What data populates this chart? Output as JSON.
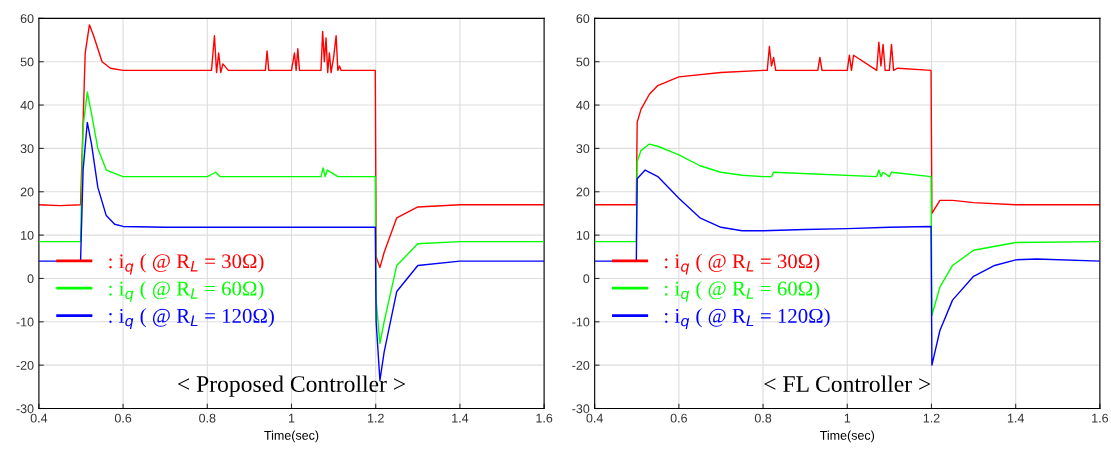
{
  "chart_data": [
    {
      "type": "line",
      "xlabel": "Time(sec)",
      "annotations": [
        "< Proposed Controller >"
      ],
      "xlim": [
        0.4,
        1.6
      ],
      "xticks": [
        0.4,
        0.6,
        0.8,
        1,
        1.2,
        1.4,
        1.6
      ],
      "ylim": [
        -30,
        60
      ],
      "yticks": [
        -30,
        -20,
        -10,
        0,
        10,
        20,
        30,
        40,
        50,
        60
      ],
      "grid": true,
      "legend": "center left",
      "series": [
        {
          "name": ": i$_{q}$ ( @ R$_{L}$ = 30Ω)",
          "color": "#ff0000",
          "x": [
            0.4,
            0.45,
            0.499,
            0.51,
            0.52,
            0.53,
            0.55,
            0.57,
            0.6,
            0.7,
            0.81,
            0.817,
            0.822,
            0.827,
            0.832,
            0.837,
            0.85,
            0.938,
            0.942,
            0.946,
            1.0,
            1.007,
            1.011,
            1.015,
            1.019,
            1.07,
            1.074,
            1.078,
            1.082,
            1.086,
            1.09,
            1.094,
            1.1,
            1.106,
            1.11,
            1.114,
            1.118,
            1.13,
            1.199,
            1.201,
            1.21,
            1.22,
            1.25,
            1.3,
            1.4,
            1.6
          ],
          "values": [
            17,
            16.8,
            17,
            52,
            58.5,
            56,
            50,
            48.5,
            48,
            48,
            48,
            56,
            47.5,
            52,
            47.5,
            49.5,
            48,
            48,
            52.5,
            48,
            48,
            52,
            48,
            53,
            48,
            48,
            57,
            50,
            55.5,
            47.5,
            52,
            47.5,
            51,
            56,
            48,
            49,
            48,
            48,
            48,
            5,
            2.5,
            6,
            14,
            16.5,
            17,
            17
          ]
        },
        {
          "name": ": i$_{q}$ ( @ R$_{L}$ = 60Ω)",
          "color": "#00ff00",
          "x": [
            0.4,
            0.499,
            0.505,
            0.515,
            0.525,
            0.54,
            0.56,
            0.6,
            0.7,
            0.8,
            0.82,
            0.83,
            1.07,
            1.075,
            1.08,
            1.085,
            1.11,
            1.12,
            1.199,
            1.201,
            1.21,
            1.22,
            1.25,
            1.3,
            1.4,
            1.6
          ],
          "values": [
            8.5,
            8.5,
            35,
            43,
            38,
            30,
            25,
            23.5,
            23.5,
            23.5,
            24.5,
            23.5,
            23.5,
            25.5,
            23.5,
            25,
            23.5,
            23.5,
            23.5,
            -5,
            -15,
            -10,
            3,
            8,
            8.5,
            8.5
          ]
        },
        {
          "name": ": i$_{q}$ ( @ R$_{L}$ = 120Ω)",
          "color": "#0000ff",
          "x": [
            0.4,
            0.499,
            0.505,
            0.515,
            0.525,
            0.54,
            0.56,
            0.58,
            0.6,
            0.7,
            0.9,
            1.1,
            1.199,
            1.201,
            1.21,
            1.22,
            1.25,
            1.3,
            1.4,
            1.6
          ],
          "values": [
            4,
            4,
            25,
            36,
            31,
            21,
            14.5,
            12.5,
            12,
            11.8,
            11.8,
            11.8,
            11.8,
            -10,
            -23.5,
            -17,
            -3,
            3,
            4,
            4
          ]
        }
      ]
    },
    {
      "type": "line",
      "xlabel": "Time(sec)",
      "annotations": [
        "< FL Controller >"
      ],
      "xlim": [
        0.4,
        1.6
      ],
      "xticks": [
        0.4,
        0.6,
        0.8,
        1,
        1.2,
        1.4,
        1.6
      ],
      "ylim": [
        -30,
        60
      ],
      "yticks": [
        -30,
        -20,
        -10,
        0,
        10,
        20,
        30,
        40,
        50,
        60
      ],
      "grid": true,
      "legend": "center left",
      "series": [
        {
          "name": ": i$_{q}$ ( @ R$_{L}$ = 30Ω)",
          "color": "#ff0000",
          "x": [
            0.4,
            0.499,
            0.501,
            0.51,
            0.53,
            0.55,
            0.6,
            0.7,
            0.8,
            0.81,
            0.815,
            0.82,
            0.825,
            0.83,
            0.84,
            0.93,
            0.935,
            0.94,
            1.0,
            1.005,
            1.01,
            1.015,
            1.07,
            1.075,
            1.08,
            1.085,
            1.09,
            1.1,
            1.105,
            1.11,
            1.12,
            1.199,
            1.201,
            1.22,
            1.25,
            1.3,
            1.4,
            1.6
          ],
          "values": [
            17,
            17,
            36,
            39,
            42.5,
            44.5,
            46.5,
            47.5,
            48,
            48,
            53.5,
            49,
            51,
            48,
            48,
            48,
            51,
            48,
            48,
            51.5,
            48,
            51.5,
            48,
            54.5,
            49,
            54,
            48,
            48,
            54,
            48,
            48.5,
            48,
            15,
            18,
            18,
            17.5,
            17,
            17
          ]
        },
        {
          "name": ": i$_{q}$ ( @ R$_{L}$ = 60Ω)",
          "color": "#00ff00",
          "x": [
            0.4,
            0.499,
            0.501,
            0.51,
            0.53,
            0.55,
            0.6,
            0.65,
            0.7,
            0.75,
            0.8,
            0.82,
            0.825,
            1.07,
            1.075,
            1.08,
            1.085,
            1.1,
            1.105,
            1.199,
            1.201,
            1.22,
            1.25,
            1.3,
            1.4,
            1.6
          ],
          "values": [
            8.5,
            8.5,
            27,
            29.5,
            31,
            30.5,
            28.5,
            26,
            24.5,
            23.8,
            23.5,
            23.5,
            24.5,
            23.5,
            25,
            23.5,
            24.5,
            23.5,
            24.5,
            23.5,
            -8.5,
            -2,
            3,
            6.5,
            8.3,
            8.5
          ]
        },
        {
          "name": ": i$_{q}$ ( @ R$_{L}$ = 120Ω)",
          "color": "#0000ff",
          "x": [
            0.4,
            0.499,
            0.501,
            0.52,
            0.55,
            0.6,
            0.65,
            0.7,
            0.75,
            0.8,
            0.9,
            1.0,
            1.1,
            1.199,
            1.201,
            1.22,
            1.25,
            1.3,
            1.35,
            1.4,
            1.45,
            1.6
          ],
          "values": [
            4,
            4,
            23,
            25,
            23.5,
            18.5,
            14,
            11.8,
            11,
            11,
            11.3,
            11.5,
            11.8,
            12,
            -20,
            -12,
            -5,
            0.5,
            3,
            4.3,
            4.5,
            4
          ]
        }
      ]
    }
  ]
}
